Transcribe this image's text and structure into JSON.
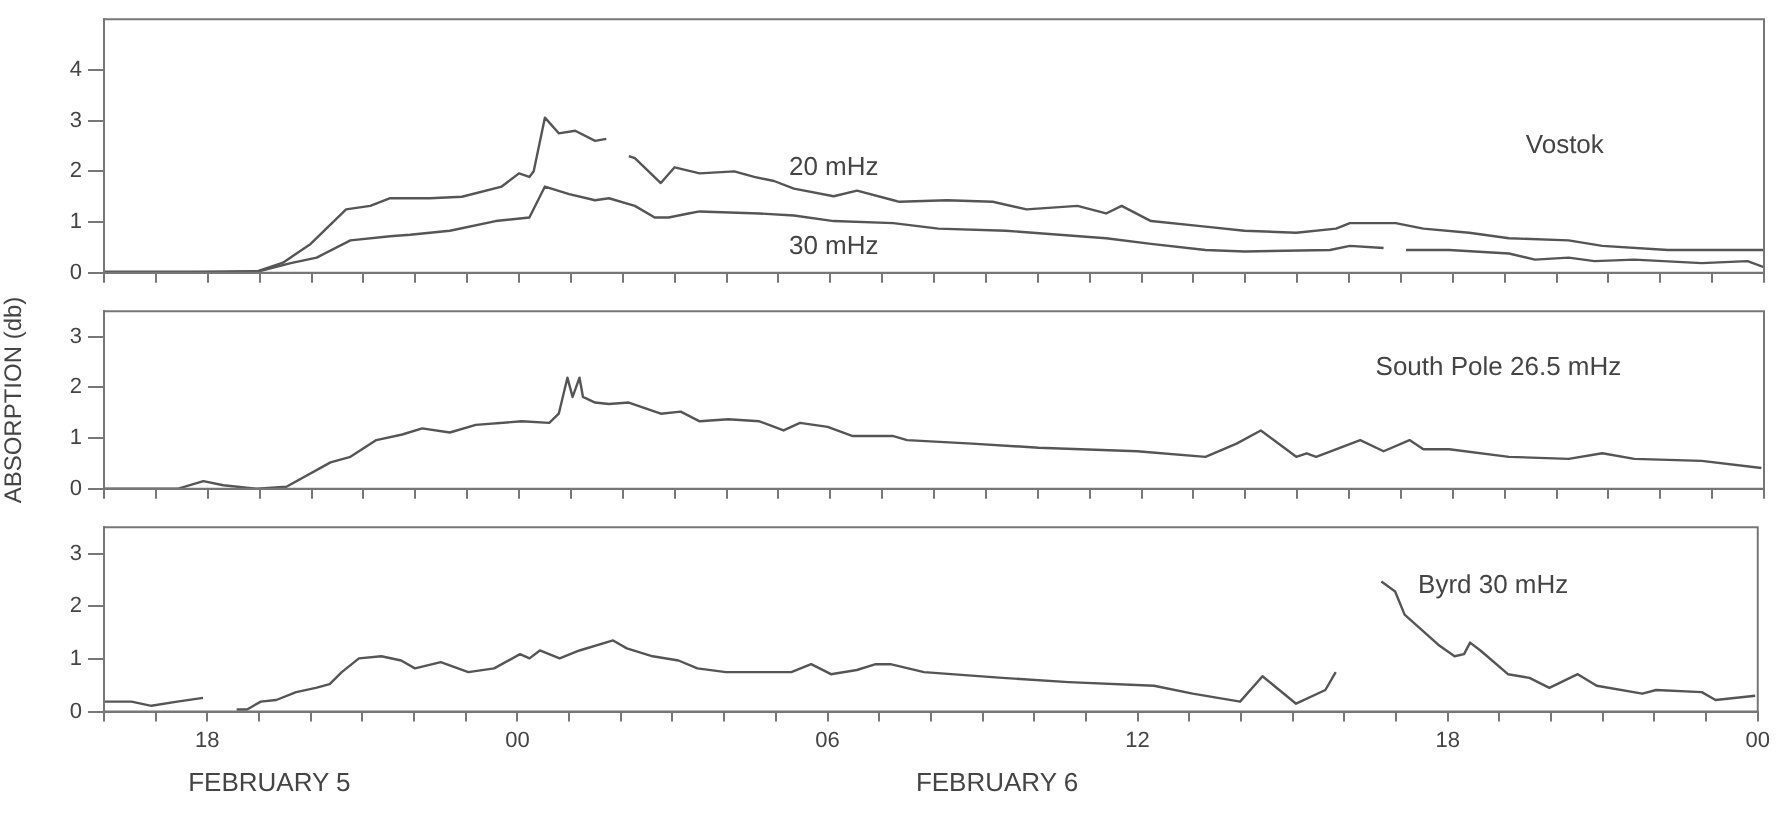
{
  "chart_data": [
    {
      "type": "line",
      "marker": "none",
      "grid": false,
      "legend": false,
      "tick_labels": "y",
      "annotations": [
        "Vostok"
      ],
      "xlim": [
        "--02-05T16:00",
        "--02-07T00:00"
      ],
      "xticks": [
        {
          "value": "--02-05T16:00",
          "label": null
        },
        {
          "value": "--02-05T17:00",
          "label": null
        },
        {
          "value": "--02-05T18:00",
          "label": "18"
        },
        {
          "value": "--02-05T19:00",
          "label": null
        },
        {
          "value": "--02-05T20:00",
          "label": null
        },
        {
          "value": "--02-05T21:00",
          "label": null
        },
        {
          "value": "--02-05T22:00",
          "label": null
        },
        {
          "value": "--02-05T23:00",
          "label": null
        },
        {
          "value": "--02-06T00:00",
          "label": "00"
        },
        {
          "value": "--02-06T01:00",
          "label": null
        },
        {
          "value": "--02-06T02:00",
          "label": null
        },
        {
          "value": "--02-06T03:00",
          "label": null
        },
        {
          "value": "--02-06T04:00",
          "label": null
        },
        {
          "value": "--02-06T05:00",
          "label": null
        },
        {
          "value": "--02-06T06:00",
          "label": "06"
        },
        {
          "value": "--02-06T07:00",
          "label": null
        },
        {
          "value": "--02-06T08:00",
          "label": null
        },
        {
          "value": "--02-06T09:00",
          "label": null
        },
        {
          "value": "--02-06T10:00",
          "label": null
        },
        {
          "value": "--02-06T11:00",
          "label": null
        },
        {
          "value": "--02-06T12:00",
          "label": "12"
        },
        {
          "value": "--02-06T13:00",
          "label": null
        },
        {
          "value": "--02-06T14:00",
          "label": null
        },
        {
          "value": "--02-06T15:00",
          "label": null
        },
        {
          "value": "--02-06T16:00",
          "label": null
        },
        {
          "value": "--02-06T17:00",
          "label": null
        },
        {
          "value": "--02-06T18:00",
          "label": "18"
        },
        {
          "value": "--02-06T19:00",
          "label": null
        },
        {
          "value": "--02-06T20:00",
          "label": null
        },
        {
          "value": "--02-06T21:00",
          "label": null
        },
        {
          "value": "--02-06T22:00",
          "label": null
        },
        {
          "value": "--02-06T23:00",
          "label": null
        },
        {
          "value": "--02-07T00:00",
          "label": "00"
        }
      ],
      "ylim": [
        0,
        5
      ],
      "yticks": [
        0,
        1,
        2,
        3,
        4
      ],
      "series": [
        {
          "name": "20 mHz",
          "color": "#555555",
          "x": [
            "--02-05T16:00",
            "--02-05T17:48",
            "--02-05T18:57",
            "--02-05T19:27",
            "--02-05T19:59",
            "--02-05T20:40",
            "--02-05T21:08",
            "--02-05T21:31",
            "--02-05T22:17",
            "--02-05T22:54",
            "--02-05T23:40",
            "--02-06T00:00",
            "--02-06T00:12",
            "--02-06T00:17",
            "--02-06T00:30",
            "--02-06T00:46",
            "--02-06T01:05",
            "--02-06T01:28",
            "--02-06T01:41",
            "--02-06T02:00",
            "--02-06T02:07",
            "--02-06T02:14",
            "--02-06T02:44",
            "--02-06T03:00",
            "--02-06T03:29",
            "--02-06T04:09",
            "--02-06T04:32",
            "--02-06T04:55",
            "--02-06T05:18",
            "--02-06T06:04",
            "--02-06T06:31",
            "--02-06T07:13",
            "--02-06T07:20",
            "--02-06T08:15",
            "--02-06T09:08",
            "--02-06T09:47",
            "--02-06T10:46",
            "--02-06T11:19",
            "--02-06T11:37",
            "--02-06T12:11",
            "--02-06T13:14",
            "--02-06T13:59",
            "--02-06T14:59",
            "--02-06T15:45",
            "--02-06T16:01",
            "--02-06T16:54",
            "--02-06T17:26",
            "--02-06T18:19",
            "--02-06T19:05",
            "--02-06T20:14",
            "--02-06T20:53",
            "--02-06T22:09",
            "--02-07T00:00"
          ],
          "values": [
            0.02,
            0.02,
            0.03,
            0.2,
            0.57,
            1.25,
            1.32,
            1.47,
            1.47,
            1.5,
            1.7,
            1.96,
            1.89,
            2.0,
            3.06,
            2.75,
            2.8,
            2.6,
            2.64,
            null,
            2.3,
            2.26,
            1.77,
            2.08,
            1.96,
            2.0,
            1.89,
            1.81,
            1.66,
            1.51,
            1.62,
            1.43,
            1.4,
            1.43,
            1.4,
            1.25,
            1.32,
            1.17,
            1.32,
            1.02,
            0.91,
            0.83,
            0.79,
            0.87,
            0.98,
            0.98,
            0.87,
            0.79,
            0.68,
            0.64,
            0.53,
            0.45,
            0.45
          ]
        },
        {
          "name": "30 mHz",
          "color": "#555555",
          "x": [
            "--02-05T16:00",
            "--02-05T17:48",
            "--02-05T18:57",
            "--02-05T19:36",
            "--02-05T20:06",
            "--02-05T20:45",
            "--02-05T21:31",
            "--02-05T21:54",
            "--02-05T22:40",
            "--02-05T23:33",
            "--02-06T00:12",
            "--02-06T00:30",
            "--02-06T00:58",
            "--02-06T01:28",
            "--02-06T01:44",
            "--02-06T02:14",
            "--02-06T02:37",
            "--02-06T02:53",
            "--02-06T03:16",
            "--02-06T03:29",
            "--02-06T04:38",
            "--02-06T05:18",
            "--02-06T06:04",
            "--02-06T07:13",
            "--02-06T08:05",
            "--02-06T09:23",
            "--02-06T11:19",
            "--02-06T12:11",
            "--02-06T13:14",
            "--02-06T13:59",
            "--02-06T15:38",
            "--02-06T16:01",
            "--02-06T16:40",
            "--02-06T16:54",
            "--02-06T17:06",
            "--02-06T17:56",
            "--02-06T19:05",
            "--02-06T19:35",
            "--02-06T20:14",
            "--02-06T20:44",
            "--02-06T21:30",
            "--02-06T22:48",
            "--02-06T23:41",
            "--02-07T00:00"
          ],
          "values": [
            0,
            0,
            0.02,
            0.19,
            0.3,
            0.64,
            0.72,
            0.75,
            0.83,
            1.02,
            1.09,
            1.7,
            1.55,
            1.43,
            1.47,
            1.32,
            1.09,
            1.09,
            1.17,
            1.21,
            1.17,
            1.13,
            1.02,
            0.98,
            0.87,
            0.83,
            0.68,
            0.57,
            0.45,
            0.42,
            0.45,
            0.53,
            0.49,
            null,
            0.45,
            0.45,
            0.38,
            0.26,
            0.3,
            0.23,
            0.26,
            0.19,
            0.23,
            0.11
          ]
        }
      ]
    },
    {
      "type": "line",
      "marker": "none",
      "grid": false,
      "legend": false,
      "tick_labels": "y",
      "ylabel": "ABSORPTION (db)",
      "xlim": [
        "--02-05T16:00",
        "--02-07T00:00"
      ],
      "xticks": [
        {
          "value": "--02-05T16:00",
          "label": null
        },
        {
          "value": "--02-05T17:00",
          "label": null
        },
        {
          "value": "--02-05T18:00",
          "label": "18"
        },
        {
          "value": "--02-05T19:00",
          "label": null
        },
        {
          "value": "--02-05T20:00",
          "label": null
        },
        {
          "value": "--02-05T21:00",
          "label": null
        },
        {
          "value": "--02-05T22:00",
          "label": null
        },
        {
          "value": "--02-05T23:00",
          "label": null
        },
        {
          "value": "--02-06T00:00",
          "label": "00"
        },
        {
          "value": "--02-06T01:00",
          "label": null
        },
        {
          "value": "--02-06T02:00",
          "label": null
        },
        {
          "value": "--02-06T03:00",
          "label": null
        },
        {
          "value": "--02-06T04:00",
          "label": null
        },
        {
          "value": "--02-06T05:00",
          "label": null
        },
        {
          "value": "--02-06T06:00",
          "label": "06"
        },
        {
          "value": "--02-06T07:00",
          "label": null
        },
        {
          "value": "--02-06T08:00",
          "label": null
        },
        {
          "value": "--02-06T09:00",
          "label": null
        },
        {
          "value": "--02-06T10:00",
          "label": null
        },
        {
          "value": "--02-06T11:00",
          "label": null
        },
        {
          "value": "--02-06T12:00",
          "label": "12"
        },
        {
          "value": "--02-06T13:00",
          "label": null
        },
        {
          "value": "--02-06T14:00",
          "label": null
        },
        {
          "value": "--02-06T15:00",
          "label": null
        },
        {
          "value": "--02-06T16:00",
          "label": null
        },
        {
          "value": "--02-06T17:00",
          "label": null
        },
        {
          "value": "--02-06T18:00",
          "label": "18"
        },
        {
          "value": "--02-06T19:00",
          "label": null
        },
        {
          "value": "--02-06T20:00",
          "label": null
        },
        {
          "value": "--02-06T21:00",
          "label": null
        },
        {
          "value": "--02-06T22:00",
          "label": null
        },
        {
          "value": "--02-06T23:00",
          "label": null
        },
        {
          "value": "--02-07T00:00",
          "label": "00"
        }
      ],
      "ylim": [
        0,
        3.5
      ],
      "yticks": [
        0,
        1,
        2,
        3
      ],
      "series": [
        {
          "name": "South Pole 26.5 mHz",
          "color": "#555555",
          "x": [
            "--02-05T16:00",
            "--02-05T17:25",
            "--02-05T17:55",
            "--02-05T18:18",
            "--02-05T18:57",
            "--02-05T19:31",
            "--02-05T20:22",
            "--02-05T20:45",
            "--02-05T21:15",
            "--02-05T21:45",
            "--02-05T22:08",
            "--02-05T22:40",
            "--02-05T23:10",
            "--02-06T00:03",
            "--02-06T00:35",
            "--02-06T00:46",
            "--02-06T00:56",
            "--02-06T01:02",
            "--02-06T01:10",
            "--02-06T01:14",
            "--02-06T01:28",
            "--02-06T01:44",
            "--02-06T02:07",
            "--02-06T02:44",
            "--02-06T03:07",
            "--02-06T03:29",
            "--02-06T04:02",
            "--02-06T04:38",
            "--02-06T05:06",
            "--02-06T05:25",
            "--02-06T05:57",
            "--02-06T06:26",
            "--02-06T07:13",
            "--02-06T07:29",
            "--02-06T08:44",
            "--02-06T10:01",
            "--02-06T11:55",
            "--02-06T13:14",
            "--02-06T13:50",
            "--02-06T14:18",
            "--02-06T14:59",
            "--02-06T15:11",
            "--02-06T15:22",
            "--02-06T16:13",
            "--02-06T16:40",
            "--02-06T17:10",
            "--02-06T17:26",
            "--02-06T17:56",
            "--02-06T19:05",
            "--02-06T20:14",
            "--02-06T20:53",
            "--02-06T21:30",
            "--02-06T22:48",
            "--02-06T23:57"
          ],
          "values": [
            0,
            0,
            0.15,
            0.07,
            0,
            0.04,
            0.52,
            0.63,
            0.96,
            1.07,
            1.19,
            1.11,
            1.26,
            1.33,
            1.3,
            1.48,
            2.19,
            1.81,
            2.19,
            1.81,
            1.7,
            1.67,
            1.7,
            1.48,
            1.52,
            1.33,
            1.37,
            1.33,
            1.15,
            1.3,
            1.22,
            1.04,
            1.04,
            0.96,
            0.89,
            0.81,
            0.74,
            0.63,
            0.89,
            1.15,
            0.63,
            0.7,
            0.63,
            0.96,
            0.74,
            0.96,
            0.78,
            0.78,
            0.63,
            0.59,
            0.7,
            0.59,
            0.55,
            0.41
          ]
        }
      ]
    },
    {
      "type": "line",
      "marker": "none",
      "grid": false,
      "legend": false,
      "annotations": [
        "FEBRUARY 5",
        "FEBRUARY 6"
      ],
      "xlim": [
        "--02-05T16:00",
        "--02-07T00:00"
      ],
      "xticks": [
        {
          "value": "--02-05T16:00",
          "label": null
        },
        {
          "value": "--02-05T17:00",
          "label": null
        },
        {
          "value": "--02-05T18:00",
          "label": "18"
        },
        {
          "value": "--02-05T19:00",
          "label": null
        },
        {
          "value": "--02-05T20:00",
          "label": null
        },
        {
          "value": "--02-05T21:00",
          "label": null
        },
        {
          "value": "--02-05T22:00",
          "label": null
        },
        {
          "value": "--02-05T23:00",
          "label": null
        },
        {
          "value": "--02-06T00:00",
          "label": "00"
        },
        {
          "value": "--02-06T01:00",
          "label": null
        },
        {
          "value": "--02-06T02:00",
          "label": null
        },
        {
          "value": "--02-06T03:00",
          "label": null
        },
        {
          "value": "--02-06T04:00",
          "label": null
        },
        {
          "value": "--02-06T05:00",
          "label": null
        },
        {
          "value": "--02-06T06:00",
          "label": "06"
        },
        {
          "value": "--02-06T07:00",
          "label": null
        },
        {
          "value": "--02-06T08:00",
          "label": null
        },
        {
          "value": "--02-06T09:00",
          "label": null
        },
        {
          "value": "--02-06T10:00",
          "label": null
        },
        {
          "value": "--02-06T11:00",
          "label": null
        },
        {
          "value": "--02-06T12:00",
          "label": "12"
        },
        {
          "value": "--02-06T13:00",
          "label": null
        },
        {
          "value": "--02-06T14:00",
          "label": null
        },
        {
          "value": "--02-06T15:00",
          "label": null
        },
        {
          "value": "--02-06T16:00",
          "label": null
        },
        {
          "value": "--02-06T17:00",
          "label": null
        },
        {
          "value": "--02-06T18:00",
          "label": "18"
        },
        {
          "value": "--02-06T19:00",
          "label": null
        },
        {
          "value": "--02-06T20:00",
          "label": null
        },
        {
          "value": "--02-06T21:00",
          "label": null
        },
        {
          "value": "--02-06T22:00",
          "label": null
        },
        {
          "value": "--02-06T23:00",
          "label": null
        },
        {
          "value": "--02-07T00:00",
          "label": "00"
        }
      ],
      "ylim": [
        0,
        3.5
      ],
      "yticks": [
        0,
        1,
        2,
        3
      ],
      "series": [
        {
          "name": "Byrd 30 mHz",
          "color": "#555555",
          "x": [
            "--02-05T16:00",
            "--02-05T16:32",
            "--02-05T16:55",
            "--02-05T17:25",
            "--02-05T17:55",
            "--02-05T18:12",
            "--02-05T18:34",
            "--02-05T18:46",
            "--02-05T19:02",
            "--02-05T19:20",
            "--02-05T19:43",
            "--02-05T20:06",
            "--02-05T20:22",
            "--02-05T20:36",
            "--02-05T20:56",
            "--02-05T21:22",
            "--02-05T21:45",
            "--02-05T22:01",
            "--02-05T22:31",
            "--02-05T23:03",
            "--02-05T23:33",
            "--02-06T00:03",
            "--02-06T00:14",
            "--02-06T00:26",
            "--02-06T00:49",
            "--02-06T01:12",
            "--02-06T01:51",
            "--02-06T02:07",
            "--02-06T02:37",
            "--02-06T03:07",
            "--02-06T03:29",
            "--02-06T04:02",
            "--02-06T04:38",
            "--02-06T05:18",
            "--02-06T05:41",
            "--02-06T06:04",
            "--02-06T06:34",
            "--02-06T06:56",
            "--02-06T07:13",
            "--02-06T07:52",
            "--02-06T09:23",
            "--02-06T10:40",
            "--02-06T12:19",
            "--02-06T13:04",
            "--02-06T13:59",
            "--02-06T14:25",
            "--02-06T15:04",
            "--02-06T15:38",
            "--02-06T15:50",
            "--02-06T16:18",
            "--02-06T16:43",
            "--02-06T16:59",
            "--02-06T17:10",
            "--02-06T17:49",
            "--02-06T18:08",
            "--02-06T18:19",
            "--02-06T18:26",
            "--02-06T18:38",
            "--02-06T19:10",
            "--02-06T19:35",
            "--02-06T19:58",
            "--02-06T20:31",
            "--02-06T20:53",
            "--02-06T21:46",
            "--02-06T22:02",
            "--02-06T22:55",
            "--02-06T23:11",
            "--02-06T23:57"
          ],
          "values": [
            0.19,
            0.19,
            0.11,
            0.19,
            0.26,
            null,
            0.04,
            0.04,
            0.19,
            0.22,
            0.37,
            0.45,
            0.52,
            0.75,
            1.01,
            1.05,
            0.97,
            0.82,
            0.94,
            0.75,
            0.82,
            1.09,
            1.01,
            1.16,
            1.01,
            1.16,
            1.35,
            1.2,
            1.05,
            0.97,
            0.82,
            0.75,
            0.75,
            0.75,
            0.9,
            0.71,
            0.79,
            0.9,
            0.9,
            0.75,
            0.64,
            0.56,
            0.49,
            0.34,
            0.19,
            0.67,
            0.15,
            0.41,
            0.75,
            null,
            2.47,
            2.28,
            1.84,
            1.27,
            1.05,
            1.09,
            1.31,
            1.16,
            0.71,
            0.64,
            0.45,
            0.71,
            0.49,
            0.34,
            0.41,
            0.37,
            0.22,
            0.3
          ]
        }
      ]
    }
  ]
}
